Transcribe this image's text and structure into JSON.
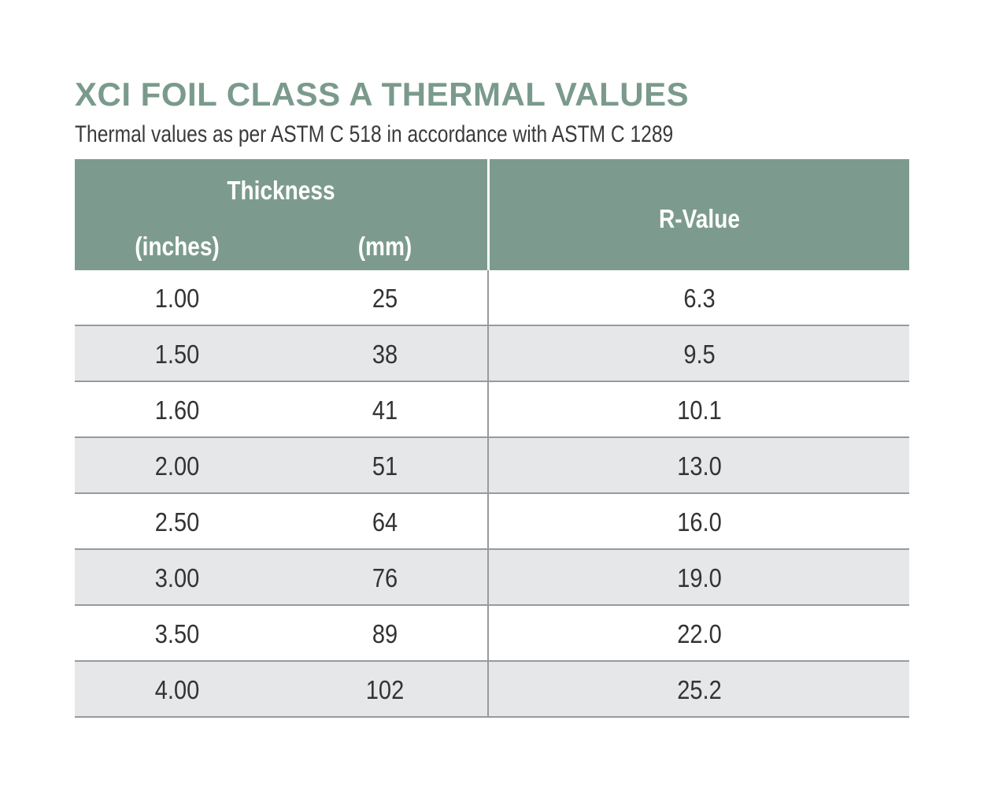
{
  "title": "XCI FOIL CLASS A THERMAL VALUES",
  "subtitle": "Thermal values as per ASTM C 518 in accordance with ASTM C 1289",
  "colors": {
    "title": "#7a9a8c",
    "header_bg": "#7c9b8e",
    "row_alt_bg": "#e6e7e8",
    "row_bg": "#ffffff",
    "rule": "#9a9a9a"
  },
  "table": {
    "headers": {
      "thickness": "Thickness",
      "inches": "(inches)",
      "mm": "(mm)",
      "rvalue": "R-Value"
    },
    "rows": [
      {
        "inches": "1.00",
        "mm": "25",
        "rvalue": "6.3"
      },
      {
        "inches": "1.50",
        "mm": "38",
        "rvalue": "9.5"
      },
      {
        "inches": "1.60",
        "mm": "41",
        "rvalue": "10.1"
      },
      {
        "inches": "2.00",
        "mm": "51",
        "rvalue": "13.0"
      },
      {
        "inches": "2.50",
        "mm": "64",
        "rvalue": "16.0"
      },
      {
        "inches": "3.00",
        "mm": "76",
        "rvalue": "19.0"
      },
      {
        "inches": "3.50",
        "mm": "89",
        "rvalue": "22.0"
      },
      {
        "inches": "4.00",
        "mm": "102",
        "rvalue": "25.2"
      }
    ]
  }
}
